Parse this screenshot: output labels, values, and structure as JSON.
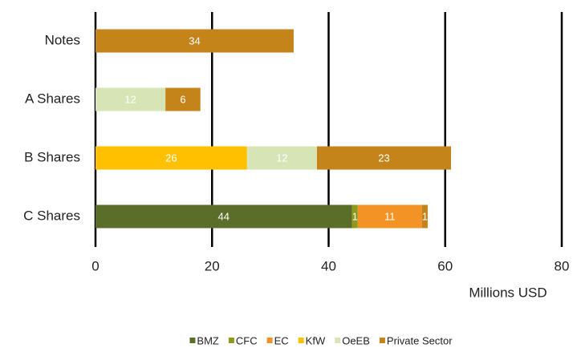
{
  "chart_data": {
    "type": "stacked-barh",
    "categories": [
      "Notes",
      "A Shares",
      "B Shares",
      "C Shares"
    ],
    "series": [
      {
        "name": "BMZ",
        "color": "#5a6e29",
        "values": [
          null,
          null,
          null,
          44
        ]
      },
      {
        "name": "CFC",
        "color": "#8f9a1c",
        "values": [
          null,
          null,
          null,
          1
        ]
      },
      {
        "name": "EC",
        "color": "#f39325",
        "values": [
          null,
          null,
          null,
          11
        ]
      },
      {
        "name": "KfW",
        "color": "#ffc000",
        "values": [
          null,
          null,
          26,
          null
        ]
      },
      {
        "name": "OeEB",
        "color": "#d7e4b6",
        "values": [
          null,
          12,
          12,
          null
        ]
      },
      {
        "name": "Private Sector",
        "color": "#c4841a",
        "values": [
          34,
          6,
          23,
          1
        ]
      }
    ],
    "xlabel": "Millions USD",
    "xlim": [
      0,
      80
    ],
    "xticks": [
      0,
      20,
      40,
      60,
      80
    ],
    "grid": true,
    "legend": "bottom"
  }
}
